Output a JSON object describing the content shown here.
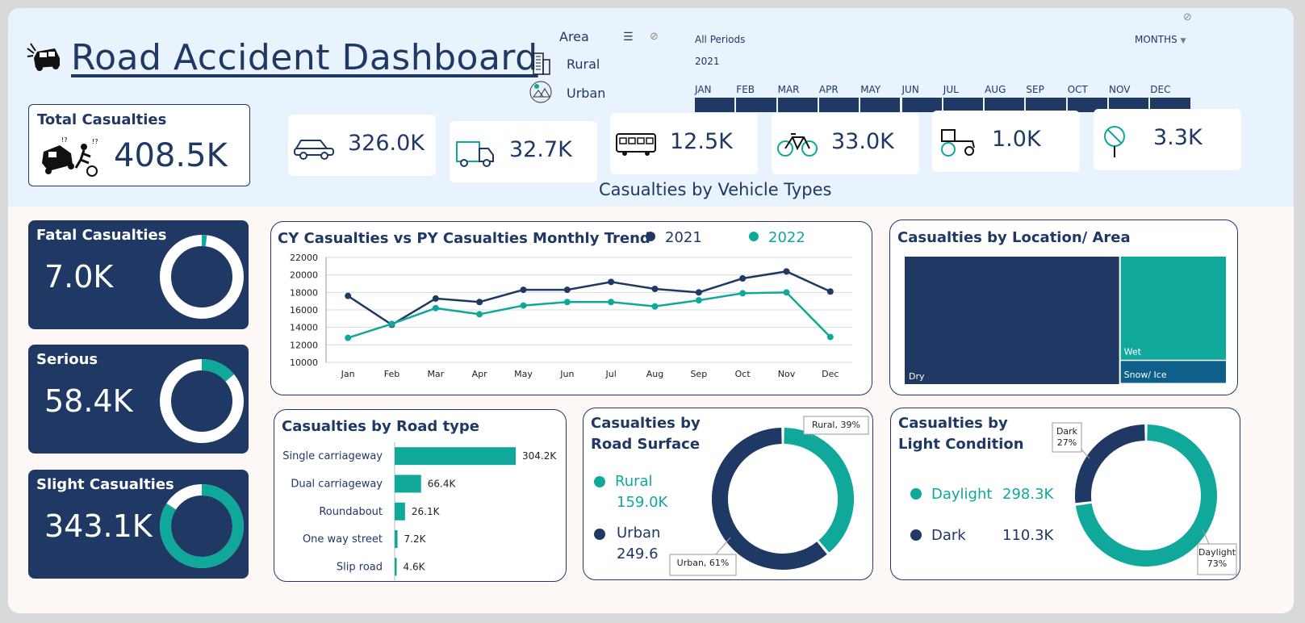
{
  "dashboard": {
    "title": "Road Accident Dashboard"
  },
  "area_slicer": {
    "label": "Area",
    "items": [
      "Rural",
      "Urban"
    ]
  },
  "timeline": {
    "all_periods": "All Periods",
    "granularity": "MONTHS",
    "year": "2021",
    "months": [
      "JAN",
      "FEB",
      "MAR",
      "APR",
      "MAY",
      "JUN",
      "JUL",
      "AUG",
      "SEP",
      "OCT",
      "NOV",
      "DEC"
    ]
  },
  "total": {
    "label": "Total Casualties",
    "value": "408.5K"
  },
  "vehicles": {
    "heading": "Casualties by Vehicle Types",
    "items": [
      {
        "icon": "car-icon",
        "value": "326.0K"
      },
      {
        "icon": "truck-icon",
        "value": "32.7K"
      },
      {
        "icon": "bus-icon",
        "value": "12.5K"
      },
      {
        "icon": "bicycle-icon",
        "value": "33.0K"
      },
      {
        "icon": "tractor-icon",
        "value": "1.0K"
      },
      {
        "icon": "other-vehicle-icon",
        "value": "3.3K"
      }
    ]
  },
  "severity": [
    {
      "label": "Fatal Casualties",
      "value": "7.0K",
      "pct_label": "2%",
      "pct": 0.02
    },
    {
      "label": "Serious",
      "value": "58.4K",
      "pct_label": "14%",
      "pct": 0.14
    },
    {
      "label": "Slight Casualties",
      "value": "343.1K",
      "pct_label": "84%",
      "pct": 0.84
    }
  ],
  "colors": {
    "navy": "#1f3864",
    "teal": "#0fa89a",
    "snow": "#0e5f8a"
  },
  "chart_data": [
    {
      "type": "line",
      "title": "CY Casualties vs PY Casualties Monthly Trend",
      "categories": [
        "Jan",
        "Feb",
        "Mar",
        "Apr",
        "May",
        "Jun",
        "Jul",
        "Aug",
        "Sep",
        "Oct",
        "Nov",
        "Dec"
      ],
      "series": [
        {
          "name": "2021",
          "color": "#1f3864",
          "values": [
            17600,
            14300,
            17300,
            16900,
            18300,
            18300,
            19200,
            18400,
            18000,
            19600,
            20400,
            18100
          ]
        },
        {
          "name": "2022",
          "color": "#0fa89a",
          "values": [
            12800,
            14400,
            16200,
            15500,
            16500,
            16900,
            16900,
            16400,
            17100,
            17900,
            18000,
            12900
          ]
        }
      ],
      "yticks": [
        "22000",
        "20000",
        "18000",
        "16000",
        "14000",
        "12000",
        "10000"
      ],
      "ylim": [
        10000,
        22000
      ],
      "grid": true,
      "legend": "top"
    },
    {
      "type": "treemap",
      "title": "Casualties by Location/ Area",
      "items": [
        {
          "name": "Dry",
          "value": 0.67,
          "color": "#1f3864"
        },
        {
          "name": "Wet",
          "value": 0.27,
          "color": "#0fa89a"
        },
        {
          "name": "Snow/ Ice",
          "value": 0.06,
          "color": "#0e5f8a"
        }
      ]
    },
    {
      "type": "bar",
      "title": "Casualties by Road type",
      "categories": [
        "Single carriageway",
        "Dual carriageway",
        "Roundabout",
        "One way street",
        "Slip road"
      ],
      "values": [
        304.2,
        66.4,
        26.1,
        7.2,
        4.6
      ],
      "labels": [
        "304.2K",
        "66.4K",
        "26.1K",
        "7.2K",
        "4.6K"
      ],
      "orientation": "horizontal"
    },
    {
      "type": "pie",
      "title": "Casualties by Road Surface",
      "donut": true,
      "slices": [
        {
          "name": "Rural",
          "value": 39,
          "callout": "Rural, 39%",
          "color": "#0fa89a"
        },
        {
          "name": "Urban",
          "value": 61,
          "callout": "Urban, 61%",
          "color": "#1f3864"
        }
      ],
      "legend": [
        {
          "name": "Rural",
          "value": "159.0K"
        },
        {
          "name": "Urban",
          "value": "249.6"
        }
      ]
    },
    {
      "type": "pie",
      "title": "Casualties by Light Condition",
      "donut": true,
      "slices": [
        {
          "name": "Daylight",
          "value": 73,
          "callout_name": "Daylight",
          "callout_pct": "73%",
          "color": "#0fa89a"
        },
        {
          "name": "Dark",
          "value": 27,
          "callout_name": "Dark",
          "callout_pct": "27%",
          "color": "#1f3864"
        }
      ],
      "legend": [
        {
          "name": "Daylight",
          "value": "298.3K"
        },
        {
          "name": "Dark",
          "value": "110.3K"
        }
      ]
    }
  ]
}
